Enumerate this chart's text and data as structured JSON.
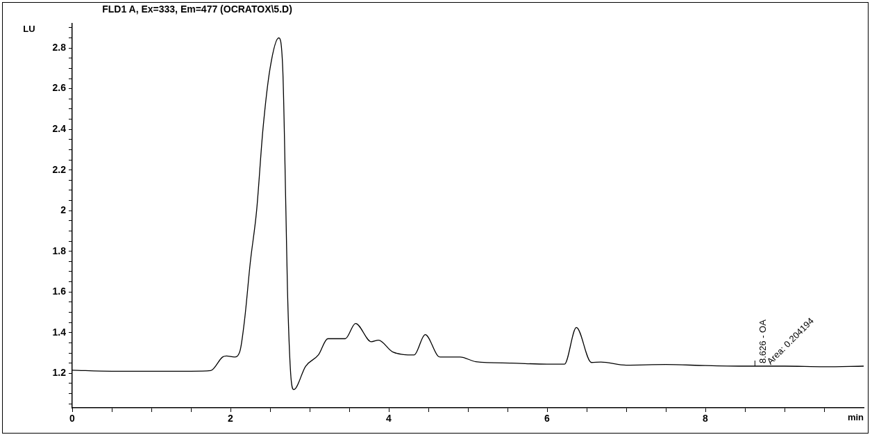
{
  "chart_data": {
    "type": "line",
    "title": "FLD1 A, Ex=333, Em=477 (OCRATOX\\5.D)",
    "xlabel": "min",
    "ylabel": "LU",
    "x": [
      0,
      0.5,
      1,
      1.5,
      1.75,
      1.9,
      1.95,
      2.05,
      2.12,
      2.18,
      2.25,
      2.33,
      2.41,
      2.5,
      2.61,
      2.66,
      2.7,
      2.72,
      2.76,
      2.8,
      2.95,
      3.11,
      3.23,
      3.45,
      3.58,
      3.78,
      3.87,
      4.05,
      4.32,
      4.46,
      4.62,
      4.65,
      4.9,
      5.1,
      5.55,
      6.0,
      6.22,
      6.37,
      6.56,
      6.68,
      7.0,
      7.5,
      8.0,
      8.5,
      9.0,
      9.5,
      10
    ],
    "series": [
      {
        "color": "#000000",
        "values": [
          1.215,
          1.21,
          1.21,
          1.21,
          1.213,
          1.28,
          1.285,
          1.28,
          1.31,
          1.47,
          1.745,
          2.0,
          2.4,
          2.7,
          2.85,
          2.7,
          2.0,
          1.61,
          1.2,
          1.12,
          1.235,
          1.29,
          1.37,
          1.37,
          1.445,
          1.355,
          1.363,
          1.305,
          1.29,
          1.39,
          1.285,
          1.28,
          1.28,
          1.257,
          1.25,
          1.245,
          1.245,
          1.425,
          1.253,
          1.255,
          1.24,
          1.243,
          1.238,
          1.235,
          1.235,
          1.232,
          1.235
        ]
      }
    ],
    "xlim": [
      0,
      10
    ],
    "ylim": [
      1.03,
      2.92
    ],
    "xticks": [
      0,
      {
        "value": 0.5,
        "label": null
      },
      {
        "value": 1,
        "label": null
      },
      {
        "value": 1.5,
        "label": null
      },
      2,
      {
        "value": 2.5,
        "label": null
      },
      {
        "value": 3,
        "label": null
      },
      {
        "value": 3.5,
        "label": null
      },
      4,
      {
        "value": 4.5,
        "label": null
      },
      {
        "value": 5,
        "label": null
      },
      {
        "value": 5.5,
        "label": null
      },
      6,
      {
        "value": 6.5,
        "label": null
      },
      {
        "value": 7,
        "label": null
      },
      {
        "value": 7.5,
        "label": null
      },
      8,
      {
        "value": 8.5,
        "label": null
      },
      {
        "value": 9,
        "label": null
      },
      {
        "value": 9.5,
        "label": null
      }
    ],
    "yticks": [
      {
        "value": 1.05,
        "label": null
      },
      {
        "value": 1.1,
        "label": null
      },
      {
        "value": 1.15,
        "label": null
      },
      1.2,
      {
        "value": 1.25,
        "label": null
      },
      {
        "value": 1.3,
        "label": null
      },
      {
        "value": 1.35,
        "label": null
      },
      1.4,
      {
        "value": 1.45,
        "label": null
      },
      {
        "value": 1.5,
        "label": null
      },
      {
        "value": 1.55,
        "label": null
      },
      1.6,
      {
        "value": 1.65,
        "label": null
      },
      {
        "value": 1.7,
        "label": null
      },
      {
        "value": 1.75,
        "label": null
      },
      1.8,
      {
        "value": 1.85,
        "label": null
      },
      {
        "value": 1.9,
        "label": null
      },
      {
        "value": 1.95,
        "label": null
      },
      2,
      {
        "value": 2.05,
        "label": null
      },
      {
        "value": 2.1,
        "label": null
      },
      {
        "value": 2.15,
        "label": null
      },
      2.2,
      {
        "value": 2.25,
        "label": null
      },
      {
        "value": 2.3,
        "label": null
      },
      {
        "value": 2.35,
        "label": null
      },
      2.4,
      {
        "value": 2.45,
        "label": null
      },
      {
        "value": 2.5,
        "label": null
      },
      {
        "value": 2.55,
        "label": null
      },
      2.6,
      {
        "value": 2.65,
        "label": null
      },
      {
        "value": 2.7,
        "label": null
      },
      {
        "value": 2.75,
        "label": null
      },
      2.8,
      {
        "value": 2.85,
        "label": null
      },
      {
        "value": 2.9,
        "label": null
      }
    ],
    "annotations": [
      {
        "text": "8.626 - OA",
        "x": 8.626,
        "y": 1.235
      },
      {
        "text": "Area: 0.204194",
        "x": 8.626,
        "y": 1.235
      }
    ],
    "grid": false,
    "legend": false,
    "marker": "none",
    "line_style": "solid"
  }
}
